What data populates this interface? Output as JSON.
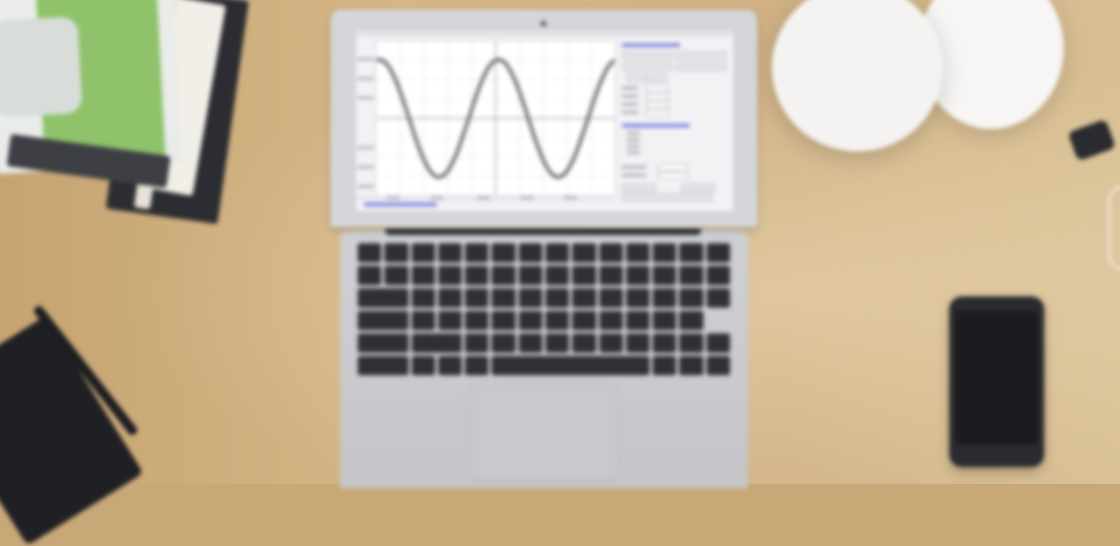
{
  "scene": {
    "description_free": true,
    "laptop_screen": {
      "plot": {
        "curve": "sine",
        "cycles": 2,
        "colors": {
          "curve": "#5a5d64",
          "grid": "#d8dbe2",
          "axis": "#8e929b"
        }
      },
      "panel_headings": 2,
      "link_color": "#6f73d9"
    }
  }
}
